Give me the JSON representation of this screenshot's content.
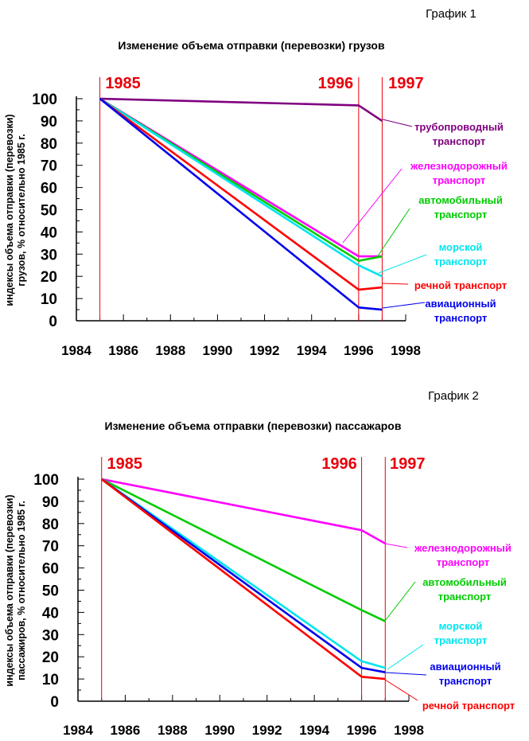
{
  "charts": [
    {
      "graph_label": "График 1",
      "title": "Изменение объема отправки (перевозки) грузов",
      "ylabel_line1": "индексы объема отправки (перевозки)",
      "ylabel_line2": "грузов, %  относительно 1985 г.",
      "markers": [
        {
          "year": 1985,
          "label": "1985"
        },
        {
          "year": 1996,
          "label": "1996"
        },
        {
          "year": 1997,
          "label": "1997"
        }
      ]
    },
    {
      "graph_label": "График 2",
      "title": "Изменение объема отправки (перевозки) пассажаров",
      "ylabel_line1": "индексы объема отправки (перевозки)",
      "ylabel_line2": "пассажиров, %  относительно 1985 г.",
      "markers": [
        {
          "year": 1985,
          "label": "1985"
        },
        {
          "year": 1996,
          "label": "1996"
        },
        {
          "year": 1997,
          "label": "1997"
        }
      ]
    }
  ],
  "chart_data": [
    {
      "type": "line",
      "title": "Изменение объема отправки (перевозки) грузов",
      "xlabel": "",
      "ylabel": "индексы объема отправки (перевозки) грузов, %  относительно 1985 г.",
      "xlim": [
        1984,
        1998
      ],
      "ylim": [
        0,
        100
      ],
      "x_ticks": [
        1984,
        1986,
        1988,
        1990,
        1992,
        1994,
        1996,
        1998
      ],
      "y_ticks": [
        0,
        10,
        20,
        30,
        40,
        50,
        60,
        70,
        80,
        90,
        100
      ],
      "grid": false,
      "series": [
        {
          "name": "трубопроводный транспорт",
          "color": "#800080",
          "x": [
            1985,
            1996,
            1997
          ],
          "y": [
            100,
            97,
            90
          ]
        },
        {
          "name": "железнодорожный транспорт",
          "color": "#ff00ff",
          "x": [
            1985,
            1996,
            1997
          ],
          "y": [
            100,
            29,
            29
          ]
        },
        {
          "name": "автомобильный транспорт",
          "color": "#00cc00",
          "x": [
            1985,
            1996,
            1997
          ],
          "y": [
            100,
            27,
            29
          ]
        },
        {
          "name": "морской транспорт",
          "color": "#00e5ee",
          "x": [
            1985,
            1996,
            1997
          ],
          "y": [
            100,
            25,
            20
          ]
        },
        {
          "name": "речной транспорт",
          "color": "#ff0000",
          "x": [
            1985,
            1996,
            1997
          ],
          "y": [
            100,
            14,
            15
          ]
        },
        {
          "name": "авиационный транспорт",
          "color": "#0000ee",
          "x": [
            1985,
            1996,
            1997
          ],
          "y": [
            100,
            6,
            5
          ]
        }
      ]
    },
    {
      "type": "line",
      "title": "Изменение объема отправки (перевозки) пассажаров",
      "xlabel": "",
      "ylabel": "индексы объема отправки (перевозки) пассажиров, %  относительно 1985 г.",
      "xlim": [
        1984,
        1998
      ],
      "ylim": [
        0,
        100
      ],
      "x_ticks": [
        1984,
        1986,
        1988,
        1990,
        1992,
        1994,
        1996,
        1998
      ],
      "y_ticks": [
        0,
        10,
        20,
        30,
        40,
        50,
        60,
        70,
        80,
        90,
        100
      ],
      "grid": false,
      "series": [
        {
          "name": "железнодорожный транспорт",
          "color": "#ff00ff",
          "x": [
            1985,
            1996,
            1997
          ],
          "y": [
            100,
            77,
            71
          ]
        },
        {
          "name": "автомобильный транспорт",
          "color": "#00cc00",
          "x": [
            1985,
            1996,
            1997
          ],
          "y": [
            100,
            41,
            36
          ]
        },
        {
          "name": "морской транспорт",
          "color": "#00e5ee",
          "x": [
            1985,
            1996,
            1997
          ],
          "y": [
            100,
            18,
            15
          ]
        },
        {
          "name": "авиационный транспорт",
          "color": "#0000ee",
          "x": [
            1985,
            1996,
            1997
          ],
          "y": [
            100,
            15,
            13
          ]
        },
        {
          "name": "речной транспорт",
          "color": "#ff0000",
          "x": [
            1985,
            1996,
            1997
          ],
          "y": [
            100,
            11,
            10
          ]
        }
      ]
    }
  ]
}
